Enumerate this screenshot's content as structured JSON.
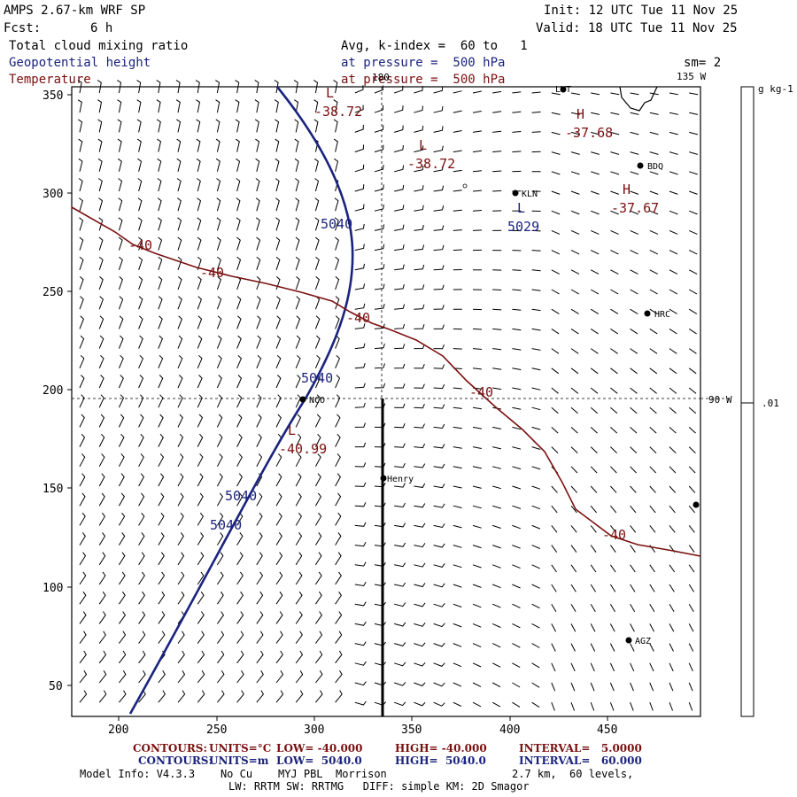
{
  "header": {
    "model": "AMPS 2.67-km WRF SP",
    "fcst_label": "Fcst:",
    "fcst_value": "6 h",
    "init": "Init: 12 UTC Tue 11 Nov 25",
    "valid": "Valid: 18 UTC Tue 11 Nov 25",
    "field1": "Total cloud mixing ratio",
    "field2": "Geopotential height",
    "field3": "Temperature",
    "avg": "Avg, k-index =  60 to   1",
    "pressure1": "at pressure =  500 hPa",
    "pressure2": "at pressure =  500 hPa",
    "sm": "sm= 2"
  },
  "colors": {
    "height": "#1a237e",
    "temperature": "#7a1010"
  },
  "map": {
    "x_ticks": [
      "200",
      "250",
      "300",
      "350",
      "400",
      "450"
    ],
    "y_ticks": [
      "350",
      "300",
      "250",
      "200",
      "150",
      "100",
      "50"
    ],
    "lon_labels": {
      "top": "180",
      "right_top": "135 W",
      "right_mid": "90 W"
    },
    "stations": [
      {
        "name": "LVT"
      },
      {
        "name": "BDQ"
      },
      {
        "name": "KLN"
      },
      {
        "name": "HRC"
      },
      {
        "name": "NCO"
      },
      {
        "name": "Henry"
      },
      {
        "name": "AGZ"
      }
    ],
    "labels": {
      "h1": "H",
      "h1v": "-37.68",
      "h2": "H",
      "h2v": "-37.67",
      "l1": "L",
      "l1v": "-38.72",
      "l2": "L",
      "l2v": "-38.72",
      "l3": "L",
      "l3v": "-40.99",
      "l4": "L",
      "l4v": "5029",
      "z1": "5040",
      "z2": "5040",
      "z3": "5040",
      "z4": "5040",
      "t1": "-40",
      "t2": "-40",
      "t3": "-40",
      "t4": "-40",
      "t5": "-40"
    }
  },
  "colorbar": {
    "units": "g kg-1",
    "value": ".01"
  },
  "footer": {
    "c1_label": "CONTOURS:",
    "c1_units": "UNITS=°C",
    "c1_low": "LOW= -40.000",
    "c1_high": "HIGH= -40.000",
    "c1_int": "INTERVAL=   5.0000",
    "c2_label": "CONTOURS:",
    "c2_units": "UNITS=m",
    "c2_low": "LOW=  5040.0",
    "c2_high": "HIGH=  5040.0",
    "c2_int": "INTERVAL=   60.000",
    "info1": "Model Info: V4.3.3    No Cu    MYJ PBL  Morrison",
    "info2": "2.7 km,  60 levels,",
    "info3": "LW: RRTM SW: RRTMG   DIFF: simple KM: 2D Smagor"
  }
}
